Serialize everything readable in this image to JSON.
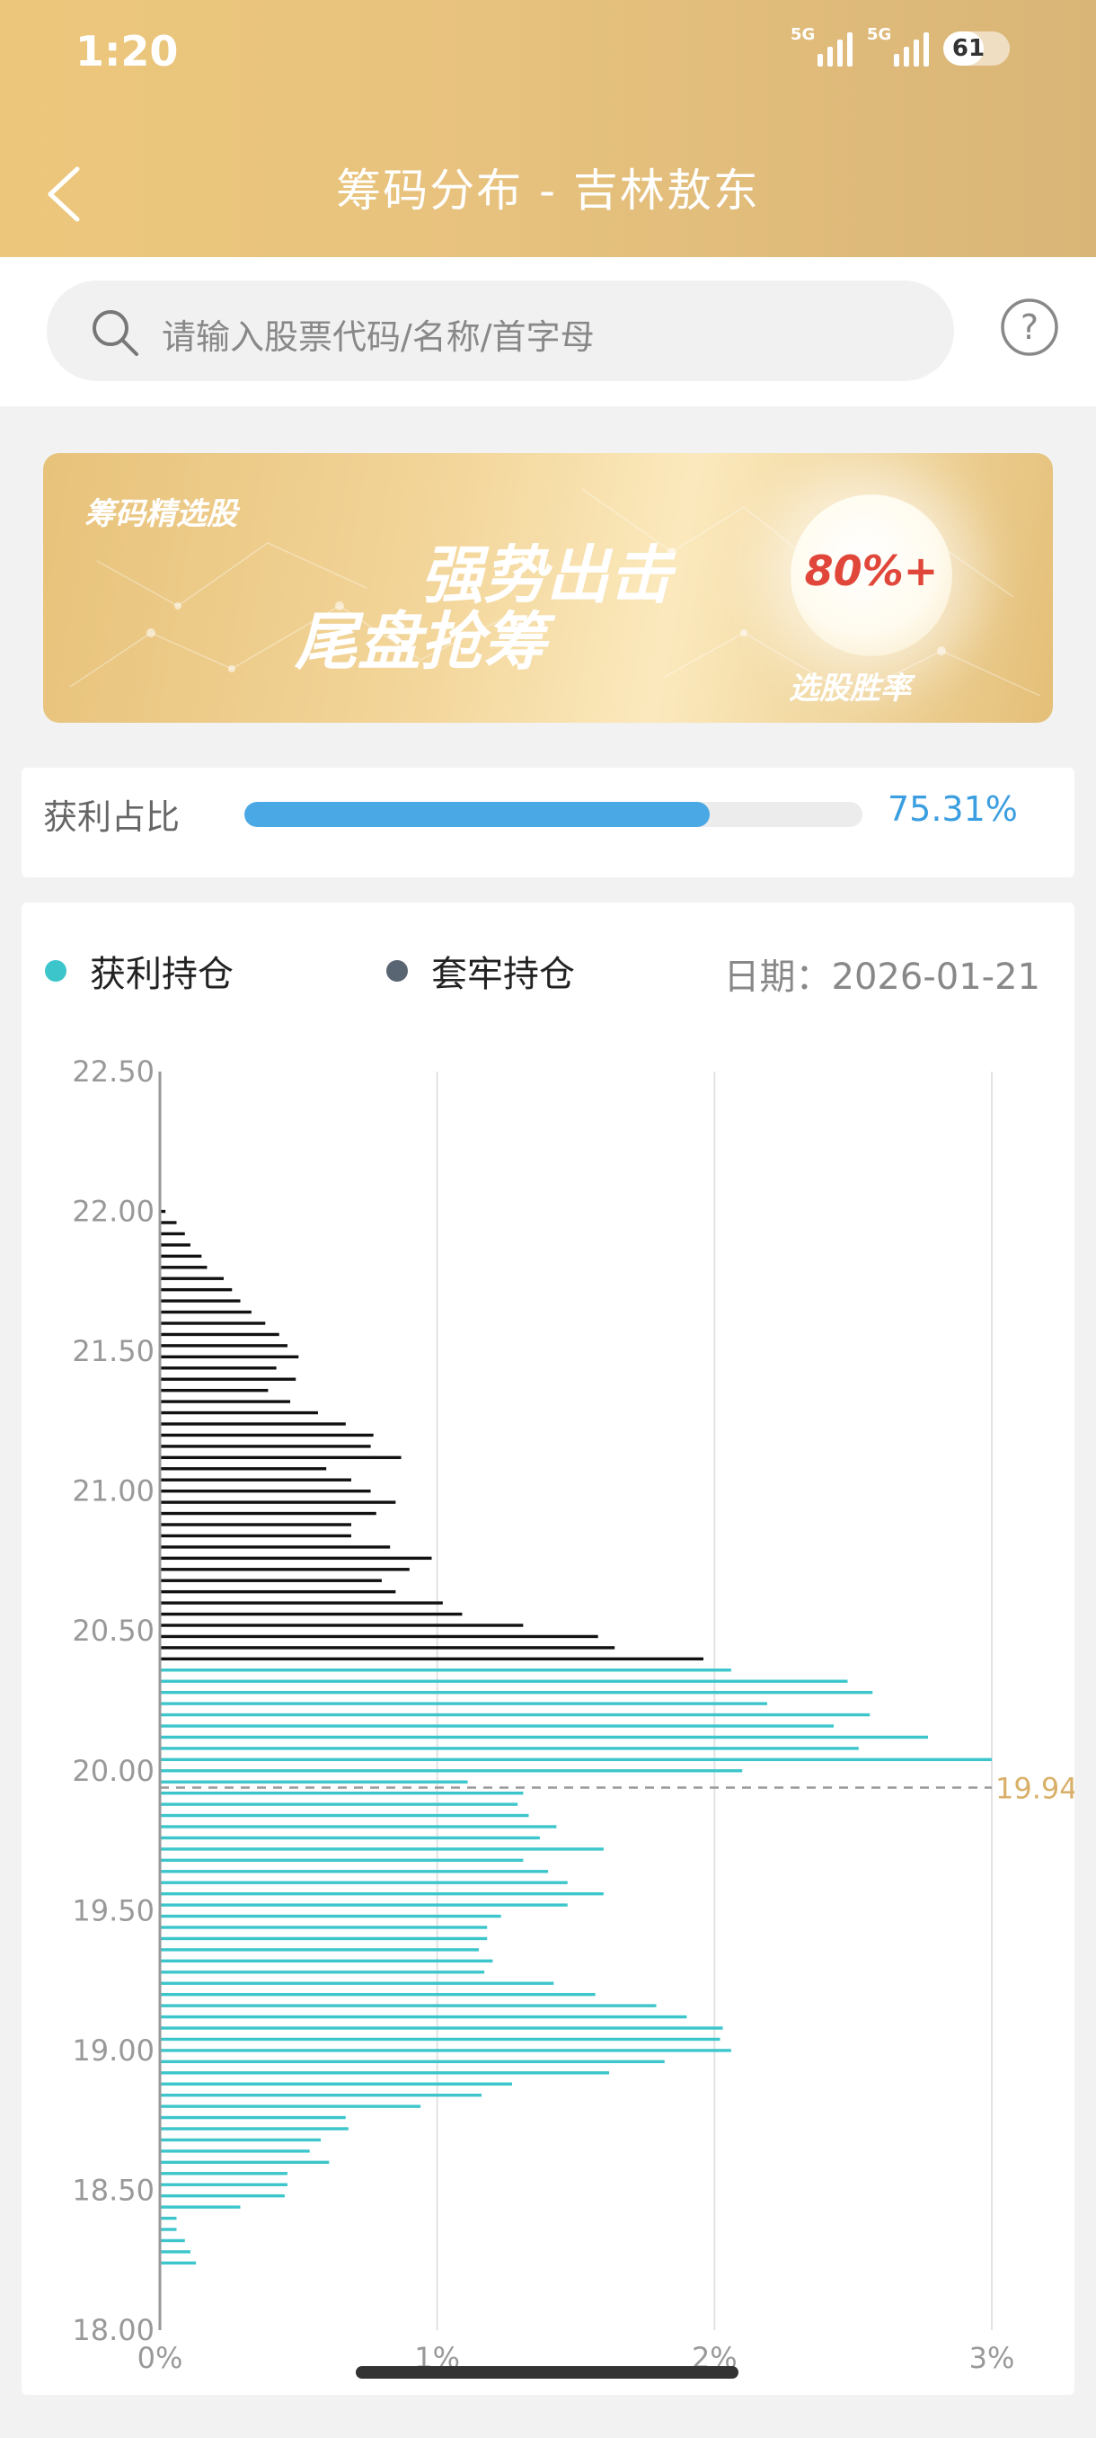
{
  "status_bar": {
    "time": "1:20",
    "signal1": "5G",
    "signal2": "5G",
    "battery": "61"
  },
  "header": {
    "title": "筹码分布 - 吉林敖东"
  },
  "search": {
    "placeholder": "请输入股票代码/名称/首字母"
  },
  "banner": {
    "tag": "筹码精选股",
    "line1": "强势出击",
    "line2": "尾盘抢筹",
    "rate": "80%+",
    "rate_label": "选股胜率"
  },
  "profit": {
    "label": "获利占比",
    "value": "75.31%",
    "fraction": 0.7531
  },
  "legend": {
    "profit_label": "获利持仓",
    "trapped_label": "套牢持仓",
    "profit_color": "#3cc6cc",
    "trapped_color": "#5a6573",
    "date": "日期：2026-01-21"
  },
  "chart_data": {
    "type": "bar",
    "orientation": "horizontal",
    "y_axis": {
      "range": [
        18.0,
        22.5
      ],
      "tick_labels": [
        "22.50",
        "22.00",
        "21.50",
        "21.00",
        "20.50",
        "20.00",
        "19.50",
        "19.00",
        "18.50",
        "18.00"
      ]
    },
    "x_axis": {
      "range": [
        0,
        3
      ],
      "unit": "%",
      "tick_labels": [
        "0%",
        "1%",
        "2%",
        "3%"
      ],
      "grid": true
    },
    "current_price": "19.94",
    "series": [
      {
        "name": "套牢持仓",
        "color": "#111111",
        "points": [
          [
            22.0,
            0.02
          ],
          [
            21.96,
            0.06
          ],
          [
            21.92,
            0.09
          ],
          [
            21.88,
            0.11
          ],
          [
            21.84,
            0.15
          ],
          [
            21.8,
            0.17
          ],
          [
            21.76,
            0.23
          ],
          [
            21.72,
            0.26
          ],
          [
            21.68,
            0.29
          ],
          [
            21.64,
            0.33
          ],
          [
            21.6,
            0.38
          ],
          [
            21.56,
            0.43
          ],
          [
            21.52,
            0.46
          ],
          [
            21.48,
            0.5
          ],
          [
            21.44,
            0.42
          ],
          [
            21.4,
            0.49
          ],
          [
            21.36,
            0.39
          ],
          [
            21.32,
            0.47
          ],
          [
            21.28,
            0.57
          ],
          [
            21.24,
            0.67
          ],
          [
            21.2,
            0.77
          ],
          [
            21.16,
            0.76
          ],
          [
            21.12,
            0.87
          ],
          [
            21.08,
            0.6
          ],
          [
            21.04,
            0.69
          ],
          [
            21.0,
            0.76
          ],
          [
            20.96,
            0.85
          ],
          [
            20.92,
            0.78
          ],
          [
            20.88,
            0.69
          ],
          [
            20.84,
            0.69
          ],
          [
            20.8,
            0.83
          ],
          [
            20.76,
            0.98
          ],
          [
            20.72,
            0.9
          ],
          [
            20.68,
            0.8
          ],
          [
            20.64,
            0.85
          ],
          [
            20.6,
            1.02
          ],
          [
            20.56,
            1.09
          ],
          [
            20.52,
            1.31
          ],
          [
            20.48,
            1.58
          ],
          [
            20.44,
            1.64
          ],
          [
            20.4,
            1.96
          ]
        ]
      },
      {
        "name": "获利持仓",
        "color": "#3cc6cc",
        "points": [
          [
            20.36,
            2.06
          ],
          [
            20.32,
            2.48
          ],
          [
            20.28,
            2.57
          ],
          [
            20.24,
            2.19
          ],
          [
            20.2,
            2.56
          ],
          [
            20.16,
            2.43
          ],
          [
            20.12,
            2.77
          ],
          [
            20.08,
            2.52
          ],
          [
            20.04,
            3.0
          ],
          [
            20.0,
            2.1
          ],
          [
            19.96,
            1.11
          ],
          [
            19.92,
            1.31
          ],
          [
            19.88,
            1.29
          ],
          [
            19.84,
            1.33
          ],
          [
            19.8,
            1.43
          ],
          [
            19.76,
            1.37
          ],
          [
            19.72,
            1.6
          ],
          [
            19.68,
            1.31
          ],
          [
            19.64,
            1.4
          ],
          [
            19.6,
            1.47
          ],
          [
            19.56,
            1.6
          ],
          [
            19.52,
            1.47
          ],
          [
            19.48,
            1.23
          ],
          [
            19.44,
            1.18
          ],
          [
            19.4,
            1.18
          ],
          [
            19.36,
            1.15
          ],
          [
            19.32,
            1.2
          ],
          [
            19.28,
            1.17
          ],
          [
            19.24,
            1.42
          ],
          [
            19.2,
            1.57
          ],
          [
            19.16,
            1.79
          ],
          [
            19.12,
            1.9
          ],
          [
            19.08,
            2.03
          ],
          [
            19.04,
            2.02
          ],
          [
            19.0,
            2.06
          ],
          [
            18.96,
            1.82
          ],
          [
            18.92,
            1.62
          ],
          [
            18.88,
            1.27
          ],
          [
            18.84,
            1.16
          ],
          [
            18.8,
            0.94
          ],
          [
            18.76,
            0.67
          ],
          [
            18.72,
            0.68
          ],
          [
            18.68,
            0.58
          ],
          [
            18.64,
            0.54
          ],
          [
            18.6,
            0.61
          ],
          [
            18.56,
            0.46
          ],
          [
            18.52,
            0.46
          ],
          [
            18.48,
            0.45
          ],
          [
            18.44,
            0.29
          ],
          [
            18.4,
            0.06
          ],
          [
            18.36,
            0.06
          ],
          [
            18.32,
            0.09
          ],
          [
            18.28,
            0.11
          ],
          [
            18.24,
            0.13
          ]
        ]
      }
    ]
  }
}
